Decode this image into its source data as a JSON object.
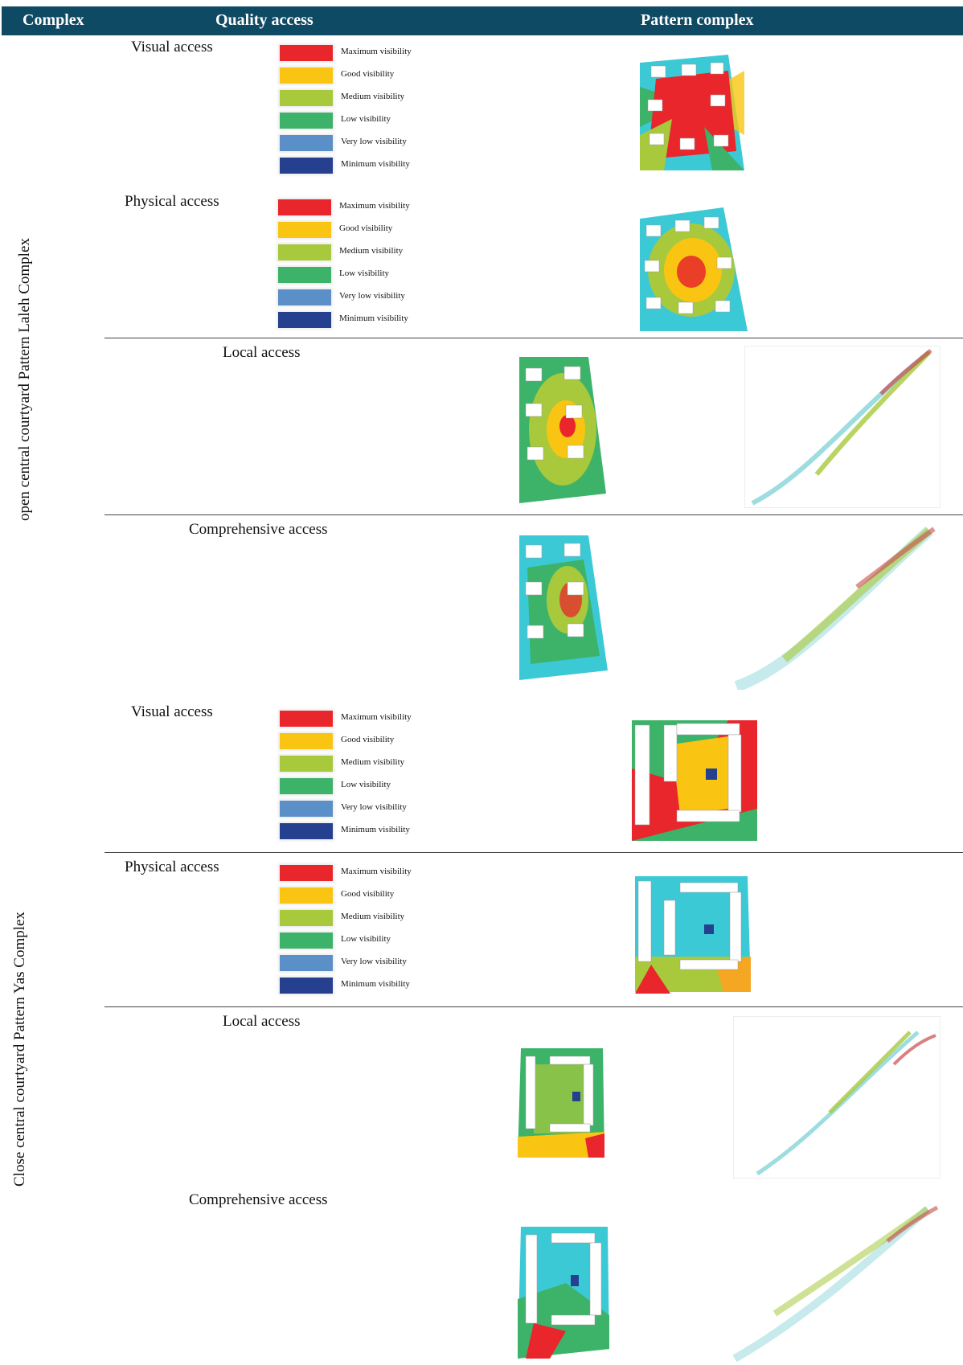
{
  "header": {
    "complex": "Complex",
    "quality": "Quality access",
    "pattern": "Pattern complex"
  },
  "complexes": [
    {
      "label": "open central courtyard Pattern  Laleh Complex"
    },
    {
      "label": "Close central courtyard  Pattern  Yas Complex"
    }
  ],
  "rows": [
    {
      "label": "Visual access"
    },
    {
      "label": "Physical access"
    },
    {
      "label": "Local access"
    },
    {
      "label": "Comprehensive access"
    },
    {
      "label": "Visual access"
    },
    {
      "label": "Physical access"
    },
    {
      "label": "Local access"
    },
    {
      "label": "Comprehensive access"
    }
  ],
  "legend": [
    {
      "label": "Maximum visibility",
      "color": "#e8262c"
    },
    {
      "label": "Good visibility",
      "color": "#f9c512"
    },
    {
      "label": "Medium visibility",
      "color": "#a8c93c"
    },
    {
      "label": "Low visibility",
      "color": "#3db36a"
    },
    {
      "label": "Very low visibility",
      "color": "#5b8fc7"
    },
    {
      "label": "Minimum visibility",
      "color": "#24408f"
    }
  ]
}
